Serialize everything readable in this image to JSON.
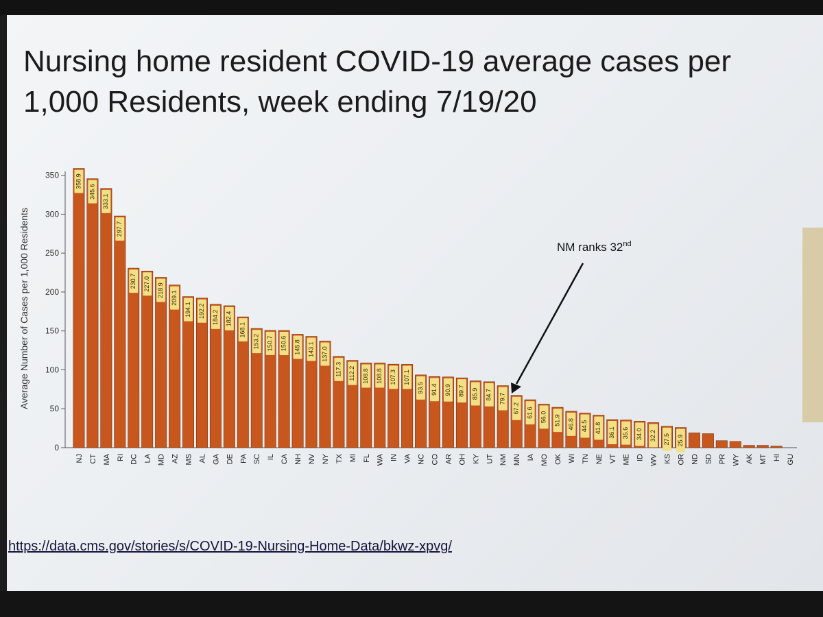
{
  "title": "Nursing home resident COVID-19 average cases per 1,000 Residents, week ending 7/19/20",
  "source_link": "https://data.cms.gov/stories/s/COVID-19-Nursing-Home-Data/bkwz-xpvg/",
  "annotation": {
    "text": "NM ranks 32",
    "sup": "nd"
  },
  "colors": {
    "bar": "#c8571d",
    "bar_edge": "#7a2e08",
    "label_bg": "#f3df86",
    "axis": "#555555"
  },
  "chart_data": {
    "type": "bar",
    "title": "Nursing home resident COVID-19 average cases per 1,000 Residents, week ending 7/19/20",
    "ylabel": "Average Number of Cases per 1,000 Residents",
    "xlabel": "",
    "ylim": [
      0,
      355
    ],
    "yticks": [
      0,
      50,
      100,
      150,
      200,
      250,
      300,
      350
    ],
    "grid": false,
    "categories": [
      "NJ",
      "CT",
      "MA",
      "RI",
      "DC",
      "LA",
      "MD",
      "AZ",
      "MS",
      "AL",
      "GA",
      "DE",
      "PA",
      "SC",
      "IL",
      "CA",
      "NH",
      "NV",
      "NY",
      "TX",
      "MI",
      "FL",
      "WA",
      "IN",
      "VA",
      "NC",
      "CO",
      "AR",
      "OH",
      "KY",
      "UT",
      "NM",
      "MN",
      "IA",
      "MO",
      "OK",
      "WI",
      "TN",
      "NE",
      "VT",
      "ME",
      "ID",
      "WV",
      "KS",
      "OR",
      "ND",
      "SD",
      "PR",
      "WY",
      "AK",
      "MT",
      "HI",
      "GU"
    ],
    "values": [
      358.9,
      345.6,
      333.1,
      297.7,
      230.7,
      227.0,
      218.9,
      209.1,
      194.1,
      192.2,
      184.2,
      182.4,
      168.1,
      153.2,
      150.7,
      150.6,
      145.8,
      143.1,
      137.0,
      117.3,
      112.2,
      108.8,
      108.8,
      107.3,
      107.1,
      93.5,
      91.4,
      90.9,
      89.7,
      85.9,
      84.7,
      79.7,
      67.2,
      61.6,
      56.0,
      51.9,
      46.8,
      44.5,
      41.8,
      36.1,
      35.6,
      34.0,
      32.2,
      27.5,
      25.9,
      19,
      18,
      9,
      8,
      3,
      3,
      2,
      0
    ],
    "data_labels": [
      "358.9",
      "345.6",
      "333.1",
      "297.7",
      "230.7",
      "227.0",
      "218.9",
      "209.1",
      "194.1",
      "192.2",
      "184.2",
      "182.4",
      "168.1",
      "153.2",
      "150.7",
      "150.6",
      "145.8",
      "143.1",
      "137.0",
      "117.3",
      "112.2",
      "108.8",
      "108.8",
      "107.3",
      "107.1",
      "93.5",
      "91.4",
      "90.9",
      "89.7",
      "85.9",
      "84.7",
      "79.7",
      "67.2",
      "61.6",
      "56.0",
      "51.9",
      "46.8",
      "44.5",
      "41.8",
      "36.1",
      "35.6",
      "34.0",
      "32.2",
      "27.5",
      "25.9",
      "",
      "",
      "",
      "",
      "",
      "",
      "",
      ""
    ]
  }
}
